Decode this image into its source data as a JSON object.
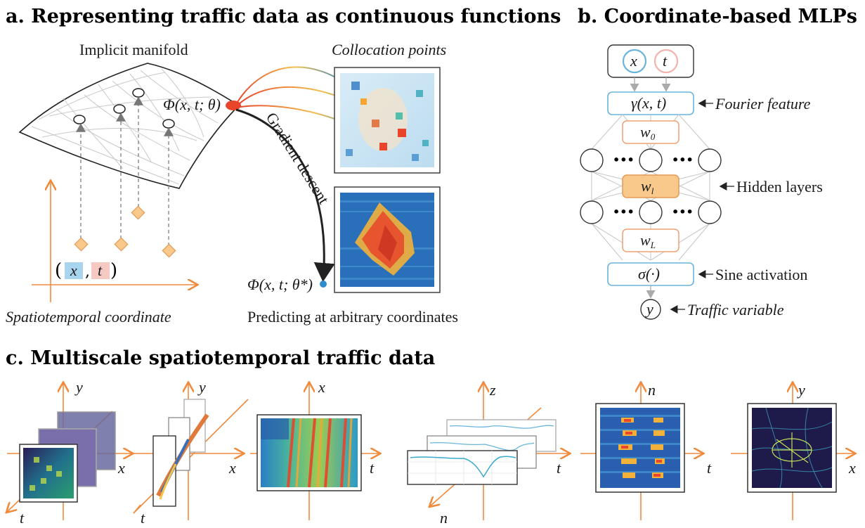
{
  "panel_a": {
    "title": "a. Representing traffic data as continuous functions",
    "manifold_label": "Implicit manifold",
    "collocation_label": "Collocation points",
    "phi_theta": "Φ(x, t; θ)",
    "phi_theta_star": "Φ(x, t; θ*)",
    "gradient_label": "Gradient descent",
    "coord_x": "x",
    "coord_t": "t",
    "coord_caption": "Spatiotemporal coordinate",
    "predict_caption": "Predicting at arbitrary coordinates"
  },
  "panel_b": {
    "title": "b. Coordinate-based MLPs",
    "input_x": "x",
    "input_t": "t",
    "fourier_box": "γ(x, t)",
    "fourier_label": "Fourier feature",
    "w0": "w0",
    "w1": "wl",
    "wL": "wL",
    "hidden_label": "Hidden layers",
    "dots": "•••",
    "sine_box": "σ(·)",
    "sine_label": "Sine activation",
    "output_y": "y",
    "output_label": "Traffic variable"
  },
  "panel_c": {
    "title": "c. Multiscale spatiotemporal traffic data",
    "plots": [
      {
        "axes": [
          "y",
          "x",
          "t"
        ]
      },
      {
        "axes": [
          "y",
          "x",
          "t"
        ]
      },
      {
        "axes": [
          "x",
          "t"
        ]
      },
      {
        "axes": [
          "z",
          "t",
          "n"
        ]
      },
      {
        "axes": [
          "n",
          "t"
        ]
      },
      {
        "axes": [
          "y",
          "x"
        ]
      }
    ]
  },
  "colors": {
    "orange": "#f08a3c",
    "red": "#e8452a",
    "blue": "#2f8ccf",
    "box_blue": "#6ab4dc",
    "box_orange": "#f0a070",
    "hidden_fill": "#f8c98a"
  }
}
